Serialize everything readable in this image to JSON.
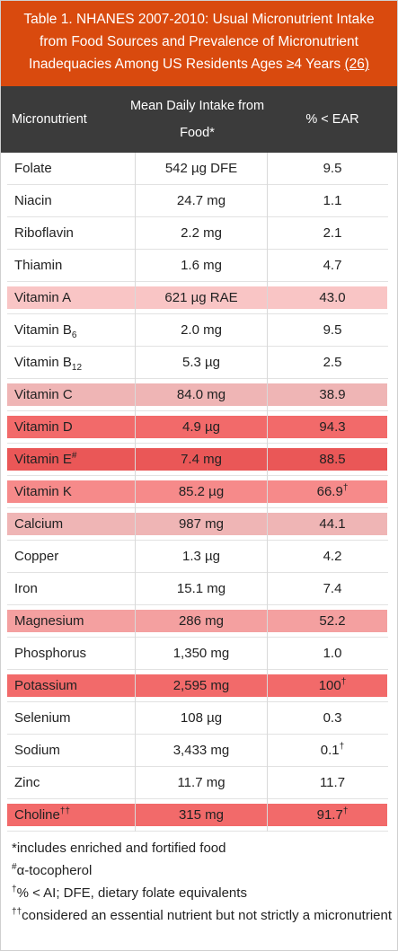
{
  "title": {
    "text": "Table 1. NHANES 2007-2010: Usual Micronutrient Intake from Food Sources and Prevalence of Micronutrient Inadequacies Among US Residents Ages ≥4 Years",
    "ref": "(26)"
  },
  "headers": {
    "col1": "Micronutrient",
    "col2": "Mean Daily Intake from Food*",
    "col3": "% < EAR"
  },
  "rows": [
    {
      "name": "Folate",
      "name_sub": "",
      "name_sup": "",
      "intake": "542 µg DFE",
      "ear": "9.5",
      "ear_sup": "",
      "highlight": ""
    },
    {
      "name": "Niacin",
      "name_sub": "",
      "name_sup": "",
      "intake": "24.7 mg",
      "ear": "1.1",
      "ear_sup": "",
      "highlight": ""
    },
    {
      "name": "Riboflavin",
      "name_sub": "",
      "name_sup": "",
      "intake": "2.2 mg",
      "ear": "2.1",
      "ear_sup": "",
      "highlight": ""
    },
    {
      "name": "Thiamin",
      "name_sub": "",
      "name_sup": "",
      "intake": "1.6 mg",
      "ear": "4.7",
      "ear_sup": "",
      "highlight": ""
    },
    {
      "name": "Vitamin A",
      "name_sub": "",
      "name_sup": "",
      "intake": "621 µg RAE",
      "ear": "43.0",
      "ear_sup": "",
      "highlight": "#f9c5c5"
    },
    {
      "name": "Vitamin B",
      "name_sub": "6",
      "name_sup": "",
      "intake": "2.0 mg",
      "ear": "9.5",
      "ear_sup": "",
      "highlight": ""
    },
    {
      "name": "Vitamin B",
      "name_sub": "12",
      "name_sup": "",
      "intake": "5.3 µg",
      "ear": "2.5",
      "ear_sup": "",
      "highlight": ""
    },
    {
      "name": "Vitamin C",
      "name_sub": "",
      "name_sup": "",
      "intake": "84.0 mg",
      "ear": "38.9",
      "ear_sup": "",
      "highlight": "#efb5b5"
    },
    {
      "name": "Vitamin D",
      "name_sub": "",
      "name_sup": "",
      "intake": "4.9 µg",
      "ear": "94.3",
      "ear_sup": "",
      "highlight": "#f26a6a"
    },
    {
      "name": "Vitamin E",
      "name_sub": "",
      "name_sup": "#",
      "intake": "7.4 mg",
      "ear": "88.5",
      "ear_sup": "",
      "highlight": "#ea5757"
    },
    {
      "name": "Vitamin K",
      "name_sub": "",
      "name_sup": "",
      "intake": "85.2 µg",
      "ear": "66.9",
      "ear_sup": "†",
      "highlight": "#f68a8a"
    },
    {
      "name": "Calcium",
      "name_sub": "",
      "name_sup": "",
      "intake": "987 mg",
      "ear": "44.1",
      "ear_sup": "",
      "highlight": "#efb5b5"
    },
    {
      "name": "Copper",
      "name_sub": "",
      "name_sup": "",
      "intake": "1.3 µg",
      "ear": "4.2",
      "ear_sup": "",
      "highlight": ""
    },
    {
      "name": "Iron",
      "name_sub": "",
      "name_sup": "",
      "intake": "15.1 mg",
      "ear": "7.4",
      "ear_sup": "",
      "highlight": ""
    },
    {
      "name": "Magnesium",
      "name_sub": "",
      "name_sup": "",
      "intake": "286 mg",
      "ear": "52.2",
      "ear_sup": "",
      "highlight": "#f4a0a0"
    },
    {
      "name": "Phosphorus",
      "name_sub": "",
      "name_sup": "",
      "intake": "1,350 mg",
      "ear": "1.0",
      "ear_sup": "",
      "highlight": ""
    },
    {
      "name": "Potassium",
      "name_sub": "",
      "name_sup": "",
      "intake": "2,595 mg",
      "ear": "100",
      "ear_sup": "†",
      "highlight": "#f26a6a"
    },
    {
      "name": "Selenium",
      "name_sub": "",
      "name_sup": "",
      "intake": "108 µg",
      "ear": "0.3",
      "ear_sup": "",
      "highlight": ""
    },
    {
      "name": "Sodium",
      "name_sub": "",
      "name_sup": "",
      "intake": "3,433 mg",
      "ear": "0.1",
      "ear_sup": "†",
      "highlight": ""
    },
    {
      "name": "Zinc",
      "name_sub": "",
      "name_sup": "",
      "intake": "11.7 mg",
      "ear": "11.7",
      "ear_sup": "",
      "highlight": ""
    },
    {
      "name": "Choline",
      "name_sub": "",
      "name_sup": "††",
      "intake": "315 mg",
      "ear": "91.7",
      "ear_sup": "†",
      "highlight": "#f26a6a"
    }
  ],
  "footnotes": [
    {
      "sup": "",
      "text": "*includes enriched and fortified food"
    },
    {
      "sup": "#",
      "text": "α-tocopherol"
    },
    {
      "sup": "†",
      "text": "% < AI; DFE, dietary folate equivalents"
    },
    {
      "sup": "††",
      "text": "considered an essential nutrient but not strictly a micronutrient"
    }
  ]
}
